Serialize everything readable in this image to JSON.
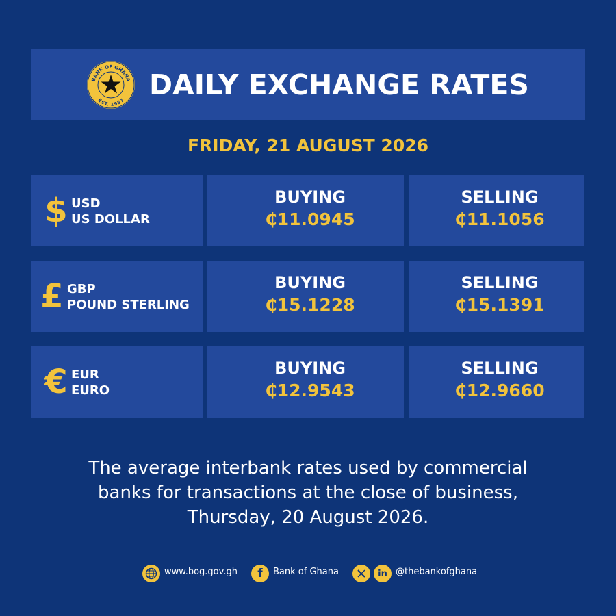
{
  "header": {
    "title": "DAILY EXCHANGE RATES",
    "seal_top_text": "BANK OF GHANA",
    "seal_bottom_text": "EST. 1957"
  },
  "date": "FRIDAY, 21 AUGUST 2026",
  "rates": [
    {
      "symbol": "$",
      "code": "USD",
      "name": "US DOLLAR",
      "buying_label": "BUYING",
      "buying": "₵11.0945",
      "selling_label": "SELLING",
      "selling": "₵11.1056"
    },
    {
      "symbol": "£",
      "code": "GBP",
      "name": "POUND STERLING",
      "buying_label": "BUYING",
      "buying": "₵15.1228",
      "selling_label": "SELLING",
      "selling": "₵15.1391"
    },
    {
      "symbol": "€",
      "code": "EUR",
      "name": "EURO",
      "buying_label": "BUYING",
      "buying": "₵12.9543",
      "selling_label": "SELLING",
      "selling": "₵12.9660"
    }
  ],
  "note": {
    "line1": "The average interbank rates used by commercial",
    "line2": "banks for transactions at the close of business,",
    "line3": "Thursday, 20 August 2026."
  },
  "footer": {
    "website": "www.bog.gov.gh",
    "facebook": "Bank of Ghana",
    "social_handle": "@thebankofghana",
    "icons": [
      "globe-icon",
      "facebook-icon",
      "x-icon",
      "linkedin-icon"
    ]
  },
  "colors": {
    "background": "#0e3478",
    "panel": "#23499c",
    "accent": "#f2c33c",
    "text": "#ffffff"
  }
}
